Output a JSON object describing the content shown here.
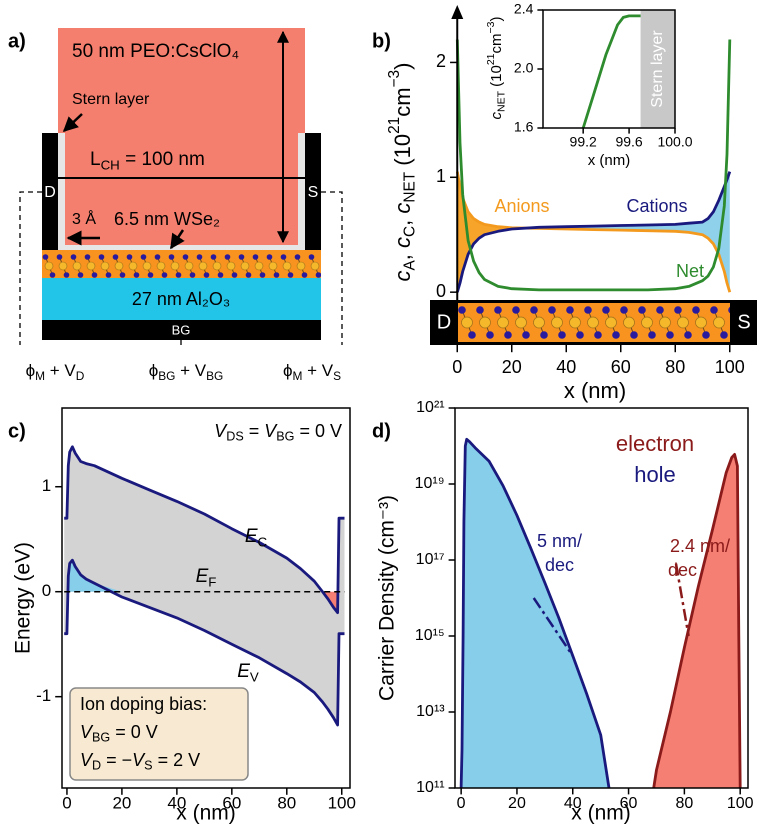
{
  "panel_labels": [
    "a)",
    "b)",
    "c)",
    "d)"
  ],
  "diagram": {
    "electrolyte": "50 nm PEO:CsClO₄",
    "stern_label": "Stern layer",
    "channel_length": [
      "L",
      {
        "sub": "CH"
      },
      " = 100 nm"
    ],
    "drain": "D",
    "source": "S",
    "gap": "3 Å",
    "semiconductor": "6.5 nm WSe₂",
    "dielectric": "27 nm Al₂O₃",
    "gate": "BG",
    "drain_potential": [
      "ϕ",
      {
        "sub": "M"
      },
      " + V",
      {
        "sub": "D"
      }
    ],
    "gate_potential": [
      "ϕ",
      {
        "sub": "BG"
      },
      " + V",
      {
        "sub": "BG"
      }
    ],
    "source_potential": [
      "ϕ",
      {
        "sub": "M"
      },
      " + V",
      {
        "sub": "S"
      }
    ]
  },
  "chart_data": [
    {
      "type": "line",
      "xlabel": "x (nm)",
      "ylabel": [
        {
          "i": "c"
        },
        {
          "sub": "A"
        },
        ", ",
        {
          "i": "c"
        },
        {
          "sub": "C"
        },
        ", ",
        {
          "i": "c"
        },
        {
          "sub": "NET"
        },
        " (10",
        {
          "sup": "21"
        },
        "cm",
        {
          "sup": "−3"
        },
        ")"
      ],
      "electrodes": [
        "D",
        "S"
      ],
      "fill": "between",
      "x": [
        0,
        1,
        2,
        4,
        6,
        8,
        10,
        15,
        20,
        30,
        40,
        50,
        60,
        70,
        80,
        85,
        90,
        92,
        94,
        96,
        98,
        99,
        100
      ],
      "series": [
        {
          "name": "Anions",
          "color": "#f39a1e",
          "fill": "#f7a52a",
          "values": [
            1.05,
            0.92,
            0.82,
            0.7,
            0.64,
            0.61,
            0.59,
            0.57,
            0.56,
            0.555,
            0.55,
            0.545,
            0.54,
            0.535,
            0.53,
            0.52,
            0.5,
            0.47,
            0.42,
            0.33,
            0.18,
            0.08,
            0
          ]
        },
        {
          "name": "Cations",
          "color": "#1a1a7e",
          "fill": "#8fd0ea",
          "values": [
            0,
            0.08,
            0.18,
            0.33,
            0.42,
            0.47,
            0.5,
            0.53,
            0.55,
            0.565,
            0.57,
            0.575,
            0.58,
            0.585,
            0.59,
            0.6,
            0.61,
            0.64,
            0.7,
            0.8,
            0.92,
            0.98,
            1.05
          ]
        },
        {
          "name": "Net",
          "color": "#2e8b2e",
          "values": [
            2.2,
            1.3,
            0.85,
            0.45,
            0.27,
            0.17,
            0.11,
            0.05,
            0.03,
            0.02,
            0.02,
            0.02,
            0.02,
            0.02,
            0.03,
            0.05,
            0.1,
            0.14,
            0.22,
            0.38,
            0.75,
            1.2,
            2.2
          ]
        }
      ],
      "xlim": [
        -10,
        110
      ],
      "ylim": [
        -0.46,
        2.5
      ],
      "xticks": [
        0,
        20,
        40,
        60,
        80,
        100
      ],
      "yticks": [
        0,
        1,
        2
      ]
    },
    {
      "type": "line",
      "xlabel": "x (nm)",
      "ylabel": [
        {
          "i": "c"
        },
        {
          "sub": "NET"
        },
        " (10",
        {
          "sup": "21"
        },
        "cm",
        {
          "sup": "−3"
        },
        ")"
      ],
      "x": [
        99.2,
        99.3,
        99.4,
        99.5,
        99.55,
        99.6,
        99.7
      ],
      "series": [
        {
          "color": "#2e8b2e",
          "values": [
            1.6,
            1.85,
            2.1,
            2.3,
            2.35,
            2.36,
            2.36
          ]
        }
      ],
      "band": {
        "label": "Stern layer",
        "range": [
          99.7,
          100
        ],
        "color": "#c8c8c8"
      },
      "xlim": [
        98.85,
        100
      ],
      "ylim": [
        1.6,
        2.4
      ],
      "xticks": [
        99.2,
        99.6,
        {
          "value": 100,
          "label": "100.0"
        }
      ],
      "yticks": [
        1.6,
        {
          "value": 2,
          "label": "2.0"
        },
        2.4
      ]
    },
    {
      "type": "line",
      "xlabel": "x (nm)",
      "ylabel": "Energy (eV)",
      "fill": "fermi",
      "band_fill": "#d3d3d3",
      "fermi_level": {
        "value": 0,
        "label": [
          {
            "i": "E"
          },
          {
            "sub": "F"
          }
        ]
      },
      "x": [
        -1,
        0,
        0.5,
        1,
        2,
        3,
        5,
        7,
        10,
        20,
        30,
        40,
        50,
        60,
        70,
        80,
        85,
        90,
        93,
        95,
        97,
        98.5,
        99,
        99.5,
        101
      ],
      "series": [
        {
          "name": [
            {
              "i": "E"
            },
            {
              "sub": "C"
            }
          ],
          "color": "#1a1a7e",
          "fill": "#f47f72",
          "values": [
            0.7,
            0.7,
            1.2,
            1.33,
            1.38,
            1.32,
            1.24,
            1.22,
            1.2,
            1.08,
            0.97,
            0.86,
            0.74,
            0.6,
            0.47,
            0.32,
            0.22,
            0.1,
            0.0,
            -0.07,
            -0.15,
            -0.2,
            0.7,
            0.7,
            0.7
          ]
        },
        {
          "name": [
            {
              "i": "E"
            },
            {
              "sub": "V"
            }
          ],
          "color": "#1a1a7e",
          "fill": "#87ceeb",
          "values": [
            -0.4,
            -0.4,
            0.15,
            0.27,
            0.3,
            0.24,
            0.16,
            0.12,
            0.08,
            -0.05,
            -0.15,
            -0.25,
            -0.37,
            -0.5,
            -0.63,
            -0.78,
            -0.86,
            -0.96,
            -1.05,
            -1.12,
            -1.2,
            -1.27,
            -0.4,
            -0.4,
            -0.4
          ]
        }
      ],
      "note": [
        {
          "i": "V"
        },
        {
          "sub": "DS"
        },
        " = ",
        {
          "i": "V"
        },
        {
          "sub": "BG"
        },
        " = 0 V"
      ],
      "bias_box": [
        "Ion doping bias:",
        [
          {
            "i": "V"
          },
          {
            "sub": "BG"
          },
          " = 0 V"
        ],
        [
          {
            "i": "V"
          },
          {
            "sub": "D"
          },
          " = −",
          {
            "i": "V"
          },
          {
            "sub": "S"
          },
          " = 2 V"
        ]
      ],
      "xlim": [
        -1.8,
        103
      ],
      "ylim": [
        -1.87,
        1.75
      ],
      "xticks": [
        0,
        20,
        40,
        60,
        80,
        100
      ],
      "yticks": [
        -1,
        0,
        1
      ]
    },
    {
      "type": "line",
      "xlabel": "x (nm)",
      "ylabel": "Carrier Density (cm⁻³)",
      "log_y": true,
      "fill": "axis",
      "series": [
        {
          "name": "electron",
          "color": "#8b1a1a",
          "fill": "#f47f72",
          "x": [
            69,
            70,
            75,
            80,
            85,
            90,
            95,
            97,
            98,
            99,
            99.5,
            100
          ],
          "values": [
            100000000000.0,
            300000000000.0,
            10000000000000.0,
            500000000000000.0,
            2e+16,
            6e+17,
            2e+19,
            5e+19,
            6e+19,
            3e+19,
            1000000000000000.0,
            100000000000.0
          ]
        },
        {
          "name": "hole",
          "color": "#1a1a7e",
          "fill": "#87ceeb",
          "x": [
            0,
            0.3,
            0.7,
            1,
            1.5,
            2,
            3,
            5,
            10,
            15,
            20,
            25,
            30,
            35,
            40,
            45,
            50,
            53
          ],
          "values": [
            100000000000.0,
            1000000000000.0,
            1000000000000000.0,
            1e+18,
            1e+20,
            1.5e+20,
            1.3e+20,
            9e+19,
            4e+19,
            9e+18,
            1.5e+18,
            2e+17,
            2.5e+16,
            3000000000000000.0,
            300000000000000.0,
            30000000000000.0,
            2500000000000.0,
            100000000000.0
          ]
        }
      ],
      "guides": [
        {
          "color": "#1a1a7e",
          "x": [
            26,
            40
          ],
          "values": [
            1e+16,
            300000000000000.0
          ]
        },
        {
          "color": "#8b1a1a",
          "x": [
            77,
            81.5
          ],
          "values": [
            8e+16,
            1000000000000000.0
          ]
        }
      ],
      "slope_labels": [
        [
          "5 nm/",
          "dec"
        ],
        [
          "2.4 nm/",
          "dec"
        ]
      ],
      "xlim": [
        -2.2,
        102.8
      ],
      "ylim": [
        100000000000.0,
        1e+21
      ],
      "xticks": [
        0,
        20,
        40,
        60,
        80,
        100
      ],
      "yticks": [
        {
          "value": 100000000000.0,
          "label": "10¹¹"
        },
        {
          "value": 10000000000000.0,
          "label": "10¹³"
        },
        {
          "value": 1000000000000000.0,
          "label": "10¹⁵"
        },
        {
          "value": 1e+17,
          "label": "10¹⁷"
        },
        {
          "value": 1e+19,
          "label": "10¹⁹"
        },
        {
          "value": 1e+21,
          "label": "10²¹"
        }
      ]
    }
  ]
}
